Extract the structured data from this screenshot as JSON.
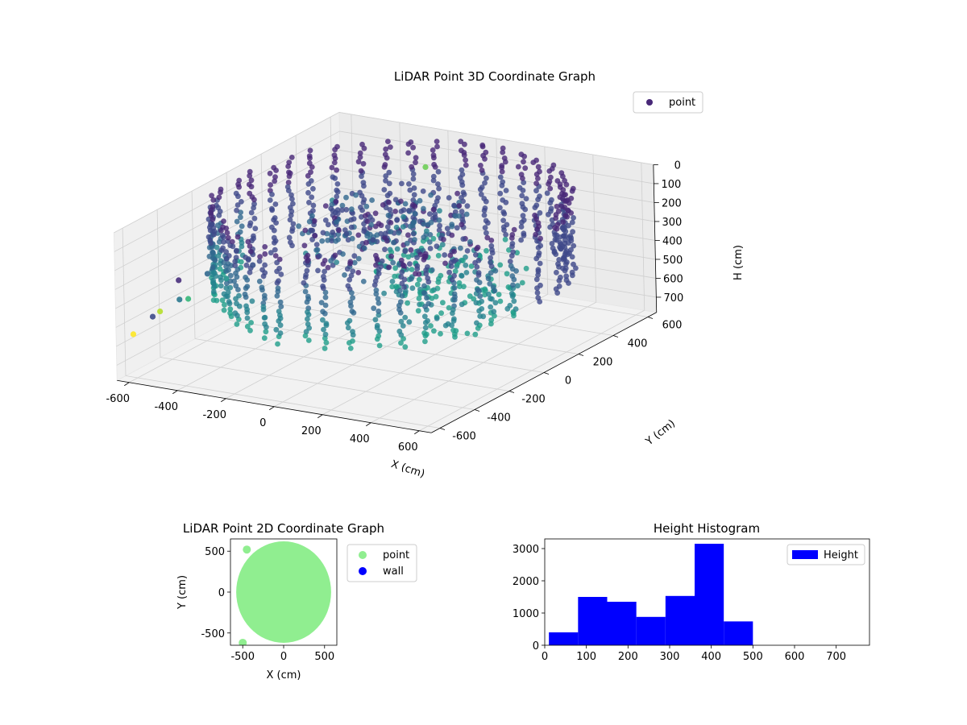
{
  "chart_data": [
    {
      "type": "scatter",
      "projection": "3d",
      "title": "LiDAR Point 3D Coordinate Graph",
      "xlabel": "X (cm)",
      "ylabel": "Y (cm)",
      "zlabel": "H (cm)",
      "xticks": [
        -600,
        -400,
        -200,
        0,
        200,
        400,
        600
      ],
      "yticks": [
        600,
        400,
        200,
        0,
        -200,
        -400,
        -600
      ],
      "zticks": [
        0,
        100,
        200,
        300,
        400,
        500,
        600,
        700
      ],
      "xlim": [
        -650,
        650
      ],
      "ylim": [
        -650,
        650
      ],
      "zlim": [
        0,
        780
      ],
      "z_inverted": true,
      "grid": true,
      "colormap": "viridis",
      "legend": {
        "position": "upper-right",
        "entries": [
          {
            "name": "point",
            "color": "#482878"
          }
        ]
      },
      "series": [
        {
          "name": "point",
          "structure": "rings of scan points around the sensor, radius up to about 600 cm, heights up to about 500 cm, plus a few scattered outliers",
          "outliers": [
            {
              "x": -600,
              "y": -620,
              "h": 540,
              "color": "#fde725"
            },
            {
              "x": -620,
              "y": -480,
              "h": 520,
              "color": "#3e4a89"
            },
            {
              "x": -560,
              "y": -520,
              "h": 460,
              "color": "#b5de2b"
            },
            {
              "x": -500,
              "y": -440,
              "h": 420,
              "color": "#35b779"
            },
            {
              "x": -580,
              "y": -380,
              "h": 470,
              "color": "#2a788e"
            },
            {
              "x": -520,
              "y": -300,
              "h": 360,
              "color": "#31688e"
            },
            {
              "x": -640,
              "y": -300,
              "h": 420,
              "color": "#472d7b"
            },
            {
              "x": -420,
              "y": -330,
              "h": 350,
              "color": "#21918c"
            },
            {
              "x": -360,
              "y": -260,
              "h": 300,
              "color": "#3b528b"
            },
            {
              "x": -100,
              "y": 380,
              "h": 40,
              "color": "#6ece58"
            }
          ]
        }
      ]
    },
    {
      "type": "scatter",
      "title": "LiDAR Point 2D Coordinate Graph",
      "xlabel": "X (cm)",
      "ylabel": "Y (cm)",
      "xticks": [
        -500,
        0,
        500
      ],
      "yticks": [
        500,
        0,
        -500
      ],
      "xlim": [
        -650,
        650
      ],
      "ylim": [
        -650,
        650
      ],
      "grid": false,
      "legend": {
        "position": "outside-right",
        "entries": [
          {
            "name": "point",
            "color": "#90ee90"
          },
          {
            "name": "wall",
            "color": "#0000ff"
          }
        ]
      },
      "series": [
        {
          "name": "point",
          "color": "#90ee90",
          "shape": "filled disc of radius about 600 cm",
          "outliers": [
            {
              "x": -500,
              "y": -620
            },
            {
              "x": -450,
              "y": 520
            }
          ]
        },
        {
          "name": "wall",
          "color": "#0000ff",
          "points": []
        }
      ]
    },
    {
      "type": "bar",
      "subtype": "histogram",
      "title": "Height Histogram",
      "xlabel": "",
      "ylabel": "",
      "xticks": [
        0,
        100,
        200,
        300,
        400,
        500,
        600,
        700
      ],
      "yticks": [
        0,
        1000,
        2000,
        3000
      ],
      "xlim": [
        0,
        780
      ],
      "ylim": [
        0,
        3300
      ],
      "color": "#0000ff",
      "legend": {
        "position": "upper-right",
        "entries": [
          {
            "name": "Height",
            "color": "#0000ff"
          }
        ]
      },
      "bins": [
        {
          "start": 10,
          "end": 80,
          "count": 400
        },
        {
          "start": 80,
          "end": 150,
          "count": 1500
        },
        {
          "start": 150,
          "end": 220,
          "count": 1350
        },
        {
          "start": 220,
          "end": 290,
          "count": 880
        },
        {
          "start": 290,
          "end": 360,
          "count": 1530
        },
        {
          "start": 360,
          "end": 430,
          "count": 3150
        },
        {
          "start": 430,
          "end": 500,
          "count": 740
        }
      ]
    }
  ]
}
